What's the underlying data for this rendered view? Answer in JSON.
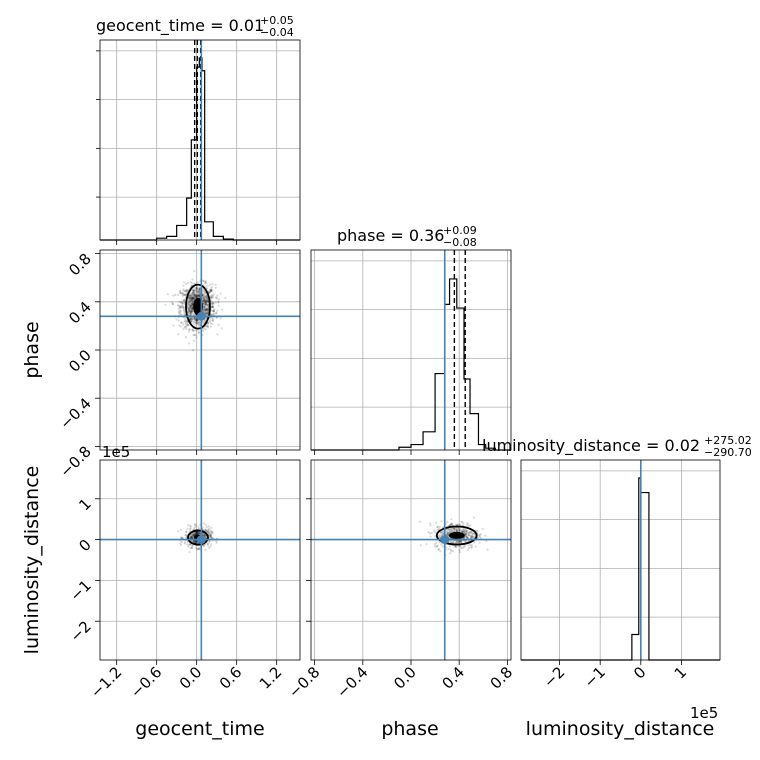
{
  "chart_data": {
    "type": "corner",
    "parameters": [
      "geocent_time",
      "phase",
      "luminosity_distance"
    ],
    "titles": [
      {
        "param": "geocent_time",
        "text": "geocent_time = 0.01",
        "sup": "+0.05",
        "sub": "−0.04"
      },
      {
        "param": "phase",
        "text": "phase = 0.36",
        "sup": "+0.09",
        "sub": "−0.08"
      },
      {
        "param": "luminosity_distance",
        "text": "luminosity_distance = 0.02",
        "sup": "+275.02",
        "sub": "−290.70"
      }
    ],
    "axes": {
      "geocent_time": {
        "label": "geocent_time",
        "range": [
          -1.45,
          1.55
        ],
        "ticks": [
          -1.2,
          -0.6,
          0.0,
          0.6,
          1.2
        ],
        "tick_labels": [
          "−1.2",
          "−0.6",
          "0.0",
          "0.6",
          "1.2"
        ]
      },
      "phase": {
        "label": "phase",
        "range": [
          -0.83,
          0.83
        ],
        "ticks": [
          -0.8,
          -0.4,
          0.0,
          0.4,
          0.8
        ],
        "tick_labels": [
          "−0.8",
          "−0.4",
          "0.0",
          "0.4",
          "0.8"
        ]
      },
      "luminosity_distance": {
        "label": "luminosity_distance",
        "range": [
          -2.95,
          1.95
        ],
        "ticks": [
          -2,
          -1,
          0,
          1
        ],
        "tick_labels": [
          "−2",
          "−1",
          "0",
          "1"
        ],
        "multiplier": "1e5"
      }
    },
    "truths": {
      "geocent_time": 0.07,
      "phase": 0.28,
      "luminosity_distance": 0.0
    },
    "quantile_lines": {
      "geocent_time": [
        -0.03,
        0.01,
        0.06
      ],
      "phase": [
        0.28,
        0.36,
        0.45
      ]
    },
    "histograms": {
      "geocent_time": {
        "edges": [
          -0.6,
          -0.45,
          -0.3,
          -0.15,
          -0.08,
          0.0,
          0.04,
          0.08,
          0.12,
          0.25,
          0.4,
          0.55
        ],
        "counts": [
          0.01,
          0.02,
          0.08,
          0.23,
          0.55,
          0.95,
          1.0,
          0.93,
          0.1,
          0.02,
          0.005
        ]
      },
      "phase": {
        "edges": [
          -0.1,
          0.0,
          0.1,
          0.2,
          0.28,
          0.32,
          0.38,
          0.44,
          0.49,
          0.56,
          0.62,
          0.7
        ],
        "counts": [
          0.015,
          0.03,
          0.1,
          0.42,
          0.8,
          0.94,
          0.78,
          0.39,
          0.2,
          0.03,
          0.01
        ]
      },
      "luminosity_distance": {
        "edges": [
          -0.22,
          -0.05,
          0.0,
          0.2
        ],
        "counts": [
          0.14,
          1.0,
          0.92
        ]
      }
    }
  }
}
